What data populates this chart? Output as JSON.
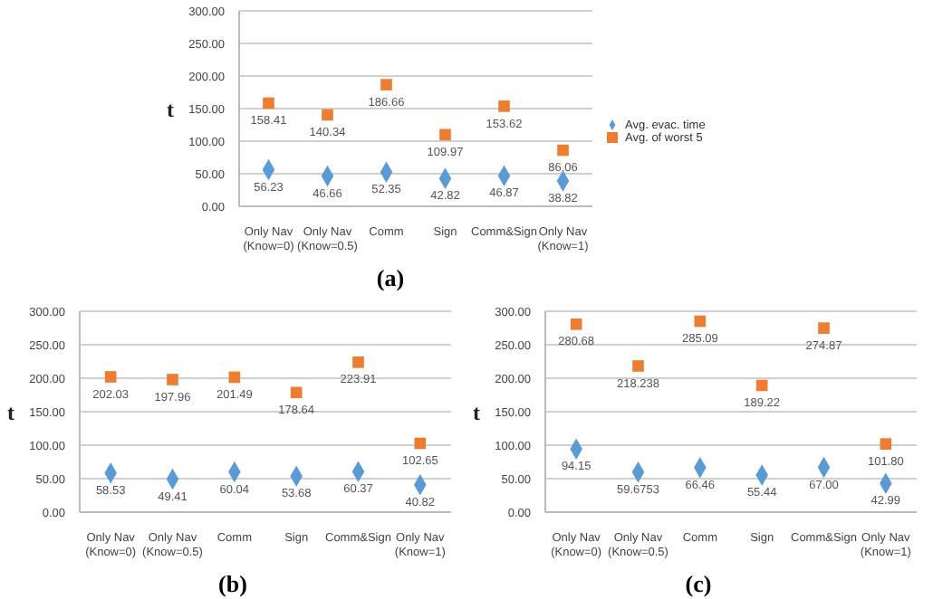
{
  "chart_data": [
    {
      "type": "scatter",
      "title": "(a)",
      "ylabel": "t",
      "categories": [
        "Only Nav\n(Know=0)",
        "Only Nav\n(Know=0.5)",
        "Comm",
        "Sign",
        "Comm&Sign",
        "Only Nav\n(Know=1)"
      ],
      "ylim": [
        0,
        300
      ],
      "yticks": [
        {
          "value": 0,
          "label": "0.00"
        },
        {
          "value": 50,
          "label": "50.00"
        },
        {
          "value": 100,
          "label": "100.00"
        },
        {
          "value": 150,
          "label": "150.00"
        },
        {
          "value": 200,
          "label": "200.00"
        },
        {
          "value": 250,
          "label": "250.00"
        },
        {
          "value": 300,
          "label": "300.00"
        }
      ],
      "grid": "y",
      "legend": "right",
      "series": [
        {
          "name": "Avg. evac. time",
          "color": "#5b9bd5",
          "marker": "diamond",
          "values": [
            56.23,
            46.66,
            52.35,
            42.82,
            46.87,
            38.82
          ],
          "value_labels": [
            "56.23",
            "46.66",
            "52.35",
            "42.82",
            "46.87",
            "38.82"
          ]
        },
        {
          "name": "Avg. of worst 5",
          "color": "#ed7d31",
          "marker": "square",
          "values": [
            158.41,
            140.34,
            186.66,
            109.97,
            153.62,
            86.06
          ],
          "value_labels": [
            "158.41",
            "140.34",
            "186.66",
            "109.97",
            "153.62",
            "86.06"
          ]
        }
      ]
    },
    {
      "type": "scatter",
      "title": "(b)",
      "ylabel": "t",
      "categories": [
        "Only Nav\n(Know=0)",
        "Only Nav\n(Know=0.5)",
        "Comm",
        "Sign",
        "Comm&Sign",
        "Only Nav\n(Know=1)"
      ],
      "ylim": [
        0,
        300
      ],
      "yticks": [
        {
          "value": 0,
          "label": "0.00"
        },
        {
          "value": 50,
          "label": "50.00"
        },
        {
          "value": 100,
          "label": "100.00"
        },
        {
          "value": 150,
          "label": "150.00"
        },
        {
          "value": 200,
          "label": "200.00"
        },
        {
          "value": 250,
          "label": "250.00"
        },
        {
          "value": 300,
          "label": "300.00"
        }
      ],
      "grid": "y",
      "series": [
        {
          "color": "#5b9bd5",
          "marker": "diamond",
          "values": [
            58.53,
            49.41,
            60.04,
            53.68,
            60.37,
            40.82
          ],
          "value_labels": [
            "58.53",
            "49.41",
            "60.04",
            "53.68",
            "60.37",
            "40.82"
          ]
        },
        {
          "color": "#ed7d31",
          "marker": "square",
          "values": [
            202.03,
            197.96,
            201.49,
            178.64,
            223.91,
            102.65
          ],
          "value_labels": [
            "202.03",
            "197.96",
            "201.49",
            "178.64",
            "223.91",
            "102.65"
          ]
        }
      ]
    },
    {
      "type": "scatter",
      "title": "(c)",
      "ylabel": "t",
      "categories": [
        "Only Nav\n(Know=0)",
        "Only Nav\n(Know=0.5)",
        "Comm",
        "Sign",
        "Comm&Sign",
        "Only Nav\n(Know=1)"
      ],
      "ylim": [
        0,
        300
      ],
      "yticks": [
        {
          "value": 0,
          "label": "0.00"
        },
        {
          "value": 50,
          "label": "50.00"
        },
        {
          "value": 100,
          "label": "100.00"
        },
        {
          "value": 150,
          "label": "150.00"
        },
        {
          "value": 200,
          "label": "200.00"
        },
        {
          "value": 250,
          "label": "250.00"
        },
        {
          "value": 300,
          "label": "300.00"
        }
      ],
      "grid": "y",
      "series": [
        {
          "color": "#5b9bd5",
          "marker": "diamond",
          "values": [
            94.15,
            59.6753,
            66.46,
            55.44,
            67,
            42.99
          ],
          "value_labels": [
            "94.15",
            "59.6753",
            "66.46",
            "55.44",
            "67.00",
            "42.99"
          ]
        },
        {
          "color": "#ed7d31",
          "marker": "square",
          "values": [
            280.68,
            218.238,
            285.09,
            189.22,
            274.87,
            101.8
          ],
          "value_labels": [
            "280.68",
            "218.238",
            "285.09",
            "189.22",
            "274.87",
            "101.80"
          ]
        }
      ]
    }
  ]
}
